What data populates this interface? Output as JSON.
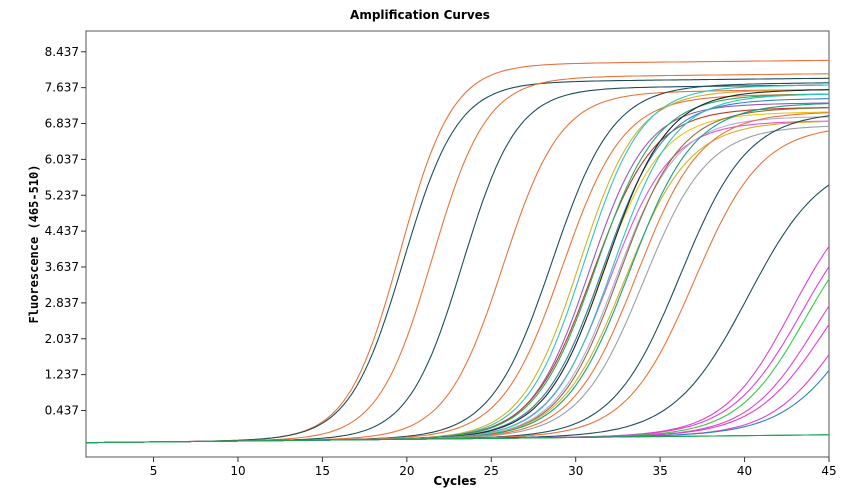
{
  "chart_data": {
    "type": "line",
    "title": "Amplification Curves",
    "xlabel": "Cycles",
    "ylabel": "Fluorescence (465-510)",
    "xlim": [
      1,
      45
    ],
    "ylim": [
      -0.6,
      8.9
    ],
    "x_ticks": [
      5,
      10,
      15,
      20,
      25,
      30,
      35,
      40,
      45
    ],
    "y_ticks": [
      0.437,
      1.237,
      2.037,
      2.837,
      3.637,
      4.437,
      5.237,
      6.037,
      6.837,
      7.637,
      8.437
    ],
    "y_tick_labels": [
      "0.437",
      "1.237",
      "2.037",
      "2.837",
      "3.637",
      "4.437",
      "5.237",
      "6.037",
      "6.837",
      "7.637",
      "8.437"
    ],
    "grid": false,
    "legend": "none",
    "baseline": -0.28,
    "series": [
      {
        "color": "#e8743b",
        "ct": 19.6,
        "plateau": 8.35,
        "slope": 1.55
      },
      {
        "color": "#1f4e5a",
        "ct": 19.8,
        "plateau": 7.95,
        "slope": 1.6
      },
      {
        "color": "#e8743b",
        "ct": 21.5,
        "plateau": 8.05,
        "slope": 1.6
      },
      {
        "color": "#1f4e5a",
        "ct": 23.3,
        "plateau": 7.8,
        "slope": 1.6
      },
      {
        "color": "#e8743b",
        "ct": 25.7,
        "plateau": 7.7,
        "slope": 1.7
      },
      {
        "color": "#1f4e5a",
        "ct": 28.6,
        "plateau": 7.85,
        "slope": 1.8
      },
      {
        "color": "#e8743b",
        "ct": 29.2,
        "plateau": 7.6,
        "slope": 1.8
      },
      {
        "color": "#d4b02a",
        "ct": 30.2,
        "plateau": 7.7,
        "slope": 1.7
      },
      {
        "color": "#2ec4c4",
        "ct": 30.5,
        "plateau": 7.8,
        "slope": 1.7
      },
      {
        "color": "#9b59b6",
        "ct": 30.8,
        "plateau": 7.4,
        "slope": 1.7
      },
      {
        "color": "#c0392b",
        "ct": 31.0,
        "plateau": 7.3,
        "slope": 1.8
      },
      {
        "color": "#27ae60",
        "ct": 31.2,
        "plateau": 7.6,
        "slope": 1.8
      },
      {
        "color": "#f1c40f",
        "ct": 31.5,
        "plateau": 7.2,
        "slope": 1.8
      },
      {
        "color": "#2e86c1",
        "ct": 31.6,
        "plateau": 7.5,
        "slope": 1.8
      },
      {
        "color": "#222222",
        "ct": 31.8,
        "plateau": 7.7,
        "slope": 1.8
      },
      {
        "color": "#e056d0",
        "ct": 32.0,
        "plateau": 7.0,
        "slope": 1.8
      },
      {
        "color": "#2ec4c4",
        "ct": 32.2,
        "plateau": 7.6,
        "slope": 1.8
      },
      {
        "color": "#b7a8d8",
        "ct": 32.4,
        "plateau": 7.1,
        "slope": 1.8
      },
      {
        "color": "#8e6e3c",
        "ct": 32.6,
        "plateau": 7.3,
        "slope": 1.8
      },
      {
        "color": "#d4b02a",
        "ct": 32.9,
        "plateau": 7.0,
        "slope": 1.9
      },
      {
        "color": "#16a085",
        "ct": 33.2,
        "plateau": 7.4,
        "slope": 1.9
      },
      {
        "color": "#e8743b",
        "ct": 33.6,
        "plateau": 7.2,
        "slope": 1.9
      },
      {
        "color": "#9aa0a6",
        "ct": 34.0,
        "plateau": 6.9,
        "slope": 1.9
      },
      {
        "color": "#1f4e5a",
        "ct": 36.2,
        "plateau": 7.2,
        "slope": 2.0
      },
      {
        "color": "#e8743b",
        "ct": 37.0,
        "plateau": 6.9,
        "slope": 2.0
      },
      {
        "color": "#1f4e5a",
        "ct": 40.2,
        "plateau": 6.2,
        "slope": 2.2
      },
      {
        "color": "#e040d0",
        "ct": 42.8,
        "plateau": 5.6,
        "slope": 2.0
      },
      {
        "color": "#e040d0",
        "ct": 43.4,
        "plateau": 5.5,
        "slope": 2.1
      },
      {
        "color": "#2ecc40",
        "ct": 43.6,
        "plateau": 5.2,
        "slope": 2.0
      },
      {
        "color": "#e040d0",
        "ct": 44.2,
        "plateau": 4.8,
        "slope": 2.0
      },
      {
        "color": "#e040d0",
        "ct": 44.8,
        "plateau": 4.7,
        "slope": 2.1
      },
      {
        "color": "#e040d0",
        "ct": 45.6,
        "plateau": 4.2,
        "slope": 2.0
      },
      {
        "color": "#2e86c1",
        "ct": 47.0,
        "plateau": 5.0,
        "slope": 2.2
      },
      {
        "color": "#2ecc40",
        "ct": 99,
        "plateau": 0.0,
        "slope": 2.0
      },
      {
        "color": "#1aa050",
        "ct": 99,
        "plateau": 0.0,
        "slope": 2.0
      }
    ]
  }
}
